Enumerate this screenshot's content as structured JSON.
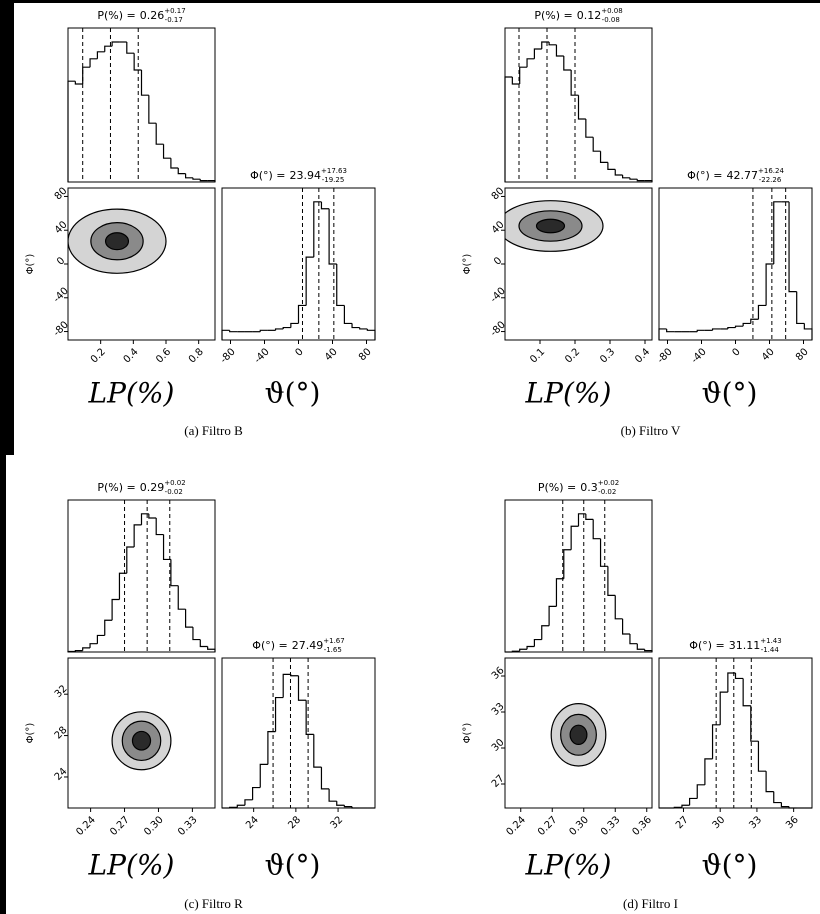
{
  "chart_data": [
    {
      "type": "corner",
      "caption": "(a) Filtro B",
      "xlabel": "LP(%)",
      "phi_xlabel": "ϑ(°)",
      "ylabel": "Φ(°)",
      "p": {
        "title": "P(%) =",
        "value": 0.26,
        "upper": {
          "value": 0.17,
          "label": "+0.17"
        },
        "lower": -0.17,
        "xlim": [
          0,
          0.9
        ],
        "xticks": [
          0.2,
          0.4,
          0.6,
          0.8
        ],
        "ylim": [
          0,
          110
        ],
        "bins": [
          0,
          0.045,
          0.09,
          0.135,
          0.18,
          0.225,
          0.27,
          0.315,
          0.36,
          0.405,
          0.45,
          0.495,
          0.54,
          0.585,
          0.63,
          0.675,
          0.72,
          0.765,
          0.81,
          0.855,
          0.9
        ],
        "counts": [
          72,
          70,
          82,
          88,
          93,
          97,
          100,
          100,
          92,
          80,
          62,
          42,
          27,
          17,
          10,
          6,
          3,
          2,
          1,
          1
        ]
      },
      "phi": {
        "title": "Φ(°) =",
        "value": 23.94,
        "upper": {
          "value": 17.63,
          "label": "+17.63"
        },
        "lower": -19.25,
        "xlim": [
          -90,
          90
        ],
        "xticks": [
          -80,
          -40,
          0,
          40,
          80
        ],
        "ylim": [
          0,
          110
        ],
        "bins": [
          -90,
          -81,
          -72,
          -63,
          -54,
          -45,
          -36,
          -27,
          -18,
          -9,
          0,
          9,
          18,
          27,
          36,
          45,
          54,
          63,
          72,
          81,
          90
        ],
        "counts": [
          7,
          6,
          6,
          6,
          6,
          7,
          7,
          8,
          9,
          12,
          25,
          60,
          100,
          95,
          55,
          25,
          12,
          9,
          8,
          7
        ]
      },
      "yticks": [
        -80,
        -40,
        0,
        40,
        80
      ],
      "contours": [
        {
          "cx": 0.3,
          "cy": 27,
          "rx": 0.3,
          "ry": 38
        },
        {
          "cx": 0.3,
          "cy": 27,
          "rx": 0.16,
          "ry": 22
        },
        {
          "cx": 0.3,
          "cy": 27,
          "rx": 0.07,
          "ry": 10
        }
      ]
    },
    {
      "type": "corner",
      "caption": "(b) Filtro V",
      "xlabel": "LP(%)",
      "phi_xlabel": "ϑ(°)",
      "ylabel": "Φ(°)",
      "p": {
        "title": "P(%) =",
        "value": 0.12,
        "upper": {
          "value": 0.08,
          "label": "+0.08"
        },
        "lower": -0.08,
        "xlim": [
          0,
          0.42
        ],
        "xticks": [
          0.1,
          0.2,
          0.3,
          0.4
        ],
        "ylim": [
          0,
          110
        ],
        "bins": [
          0,
          0.021,
          0.042,
          0.063,
          0.084,
          0.105,
          0.126,
          0.147,
          0.168,
          0.189,
          0.21,
          0.231,
          0.252,
          0.273,
          0.294,
          0.315,
          0.336,
          0.357,
          0.378,
          0.399,
          0.42
        ],
        "counts": [
          75,
          70,
          82,
          88,
          95,
          100,
          98,
          90,
          80,
          62,
          45,
          32,
          22,
          14,
          9,
          5,
          3,
          2,
          1,
          1
        ]
      },
      "phi": {
        "title": "Φ(°) =",
        "value": 42.77,
        "upper": {
          "value": 16.24,
          "label": "+16.24"
        },
        "lower": -22.26,
        "xlim": [
          -90,
          90
        ],
        "xticks": [
          -80,
          -40,
          0,
          40,
          80
        ],
        "ylim": [
          0,
          110
        ],
        "bins": [
          -90,
          -81,
          -72,
          -63,
          -54,
          -45,
          -36,
          -27,
          -18,
          -9,
          0,
          9,
          18,
          27,
          36,
          45,
          54,
          63,
          72,
          81,
          90
        ],
        "counts": [
          8,
          6,
          6,
          6,
          6,
          7,
          7,
          8,
          8,
          9,
          10,
          12,
          15,
          25,
          55,
          100,
          100,
          35,
          12,
          8
        ]
      },
      "yticks": [
        -80,
        -40,
        0,
        40,
        80
      ],
      "contours": [
        {
          "cx": 0.13,
          "cy": 45,
          "rx": 0.15,
          "ry": 30
        },
        {
          "cx": 0.13,
          "cy": 45,
          "rx": 0.09,
          "ry": 18
        },
        {
          "cx": 0.13,
          "cy": 45,
          "rx": 0.04,
          "ry": 8
        }
      ]
    },
    {
      "type": "corner",
      "caption": "(c) Filtro R",
      "xlabel": "LP(%)",
      "phi_xlabel": "ϑ(°)",
      "ylabel": "Φ(°)",
      "p": {
        "title": "P(%) =",
        "value": 0.29,
        "upper": {
          "value": 0.02,
          "label": "+0.02"
        },
        "lower": -0.02,
        "xlim": [
          0.22,
          0.35
        ],
        "xticks": [
          0.24,
          0.27,
          {
            "value": 0.3,
            "label": "0.30"
          },
          0.33
        ],
        "ylim": [
          0,
          110
        ],
        "bins": [
          0.22,
          0.2265,
          0.233,
          0.2395,
          0.246,
          0.2525,
          0.259,
          0.2655,
          0.272,
          0.2785,
          0.285,
          0.2915,
          0.298,
          0.3045,
          0.311,
          0.3175,
          0.324,
          0.3305,
          0.337,
          0.3435,
          0.35
        ],
        "counts": [
          0.4,
          1,
          3,
          6,
          12,
          23,
          38,
          57,
          76,
          92,
          100,
          97,
          85,
          67,
          48,
          31,
          18,
          9,
          4,
          2
        ]
      },
      "phi": {
        "title": "Φ(°) =",
        "value": 27.49,
        "upper": {
          "value": 1.67,
          "label": "+1.67"
        },
        "lower": -1.65,
        "xlim": [
          21,
          35.5
        ],
        "xticks": [
          24,
          28,
          32
        ],
        "ylim": [
          0,
          110
        ],
        "bins": [
          21,
          21.725,
          22.45,
          23.175,
          23.9,
          24.625,
          25.35,
          26.075,
          26.8,
          27.525,
          28.25,
          28.975,
          29.7,
          30.425,
          31.15,
          31.875,
          32.6,
          33.325,
          34.05,
          34.775,
          35.5
        ],
        "counts": [
          0,
          0.5,
          2,
          6,
          15,
          32,
          56,
          81,
          98,
          97,
          79,
          54,
          30,
          14,
          5,
          2,
          1,
          0,
          0,
          0
        ]
      },
      "yticks": [
        24,
        28,
        32
      ],
      "contours": [
        {
          "cx": 0.285,
          "cy": 27.5,
          "rx": 0.026,
          "ry": 2.8
        },
        {
          "cx": 0.285,
          "cy": 27.5,
          "rx": 0.017,
          "ry": 1.9
        },
        {
          "cx": 0.285,
          "cy": 27.5,
          "rx": 0.008,
          "ry": 0.9
        }
      ]
    },
    {
      "type": "corner",
      "caption": "(d) Filtro I",
      "xlabel": "LP(%)",
      "phi_xlabel": "ϑ(°)",
      "ylabel": "Φ(°)",
      "p": {
        "title": "P(%) =",
        "value": 0.3,
        "upper": {
          "value": 0.02,
          "label": "+0.02"
        },
        "lower": -0.02,
        "xlim": [
          0.225,
          0.365
        ],
        "xticks": [
          0.24,
          0.27,
          {
            "value": 0.3,
            "label": "0.30"
          },
          0.33,
          0.36
        ],
        "ylim": [
          0,
          110
        ],
        "bins": [
          0.225,
          0.232,
          0.239,
          0.246,
          0.253,
          0.26,
          0.267,
          0.274,
          0.281,
          0.288,
          0.295,
          0.302,
          0.309,
          0.316,
          0.323,
          0.33,
          0.337,
          0.344,
          0.351,
          0.358,
          0.365
        ],
        "counts": [
          0,
          0.6,
          2,
          4,
          9,
          19,
          33,
          53,
          74,
          91,
          100,
          96,
          82,
          62,
          41,
          24,
          13,
          6,
          2,
          1
        ]
      },
      "phi": {
        "title": "Φ(°) =",
        "value": 31.11,
        "upper": {
          "value": 1.43,
          "label": "+1.43"
        },
        "lower": -1.44,
        "xlim": [
          25,
          37.5
        ],
        "xticks": [
          27,
          30,
          33,
          36
        ],
        "ylim": [
          0,
          110
        ],
        "bins": [
          25,
          25.625,
          26.25,
          26.875,
          27.5,
          28.125,
          28.75,
          29.375,
          30,
          30.625,
          31.25,
          31.875,
          32.5,
          33.125,
          33.75,
          34.375,
          35,
          35.625,
          36.25,
          36.875,
          37.5
        ],
        "counts": [
          0,
          0,
          0.5,
          2,
          7,
          17,
          36,
          61,
          85,
          99,
          95,
          75,
          49,
          27,
          12,
          4,
          1,
          0,
          0,
          0
        ]
      },
      "yticks": [
        27,
        30,
        33,
        36
      ],
      "contours": [
        {
          "cx": 0.295,
          "cy": 31.1,
          "rx": 0.026,
          "ry": 2.6
        },
        {
          "cx": 0.295,
          "cy": 31.1,
          "rx": 0.017,
          "ry": 1.7
        },
        {
          "cx": 0.295,
          "cy": 31.1,
          "rx": 0.008,
          "ry": 0.8
        }
      ]
    }
  ]
}
